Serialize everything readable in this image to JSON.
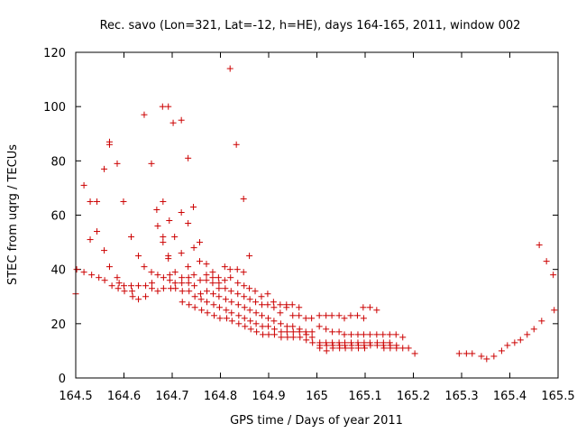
{
  "chart_data": {
    "type": "scatter",
    "title": "Rec. savo (Lon=321, Lat=-12, h=HE), days 164-165, 2011, window 002",
    "xlabel": "GPS time / Days of year 2011",
    "ylabel": "STEC from uqrg / TECUs",
    "xlim": [
      164.5,
      165.5
    ],
    "ylim": [
      0,
      120
    ],
    "xticks": [
      "164.5",
      "164.6",
      "164.7",
      "164.8",
      "164.9",
      "165",
      "165.1",
      "165.2",
      "165.3",
      "165.4",
      "165.5"
    ],
    "yticks": [
      "0",
      "20",
      "40",
      "60",
      "80",
      "100",
      "120"
    ],
    "grid": false,
    "marker": "+",
    "color": "#cc0000",
    "points": [
      [
        164.5,
        31
      ],
      [
        164.502,
        40
      ],
      [
        164.517,
        71
      ],
      [
        164.517,
        39
      ],
      [
        164.53,
        51
      ],
      [
        164.53,
        65
      ],
      [
        164.533,
        38
      ],
      [
        164.544,
        65
      ],
      [
        164.544,
        54
      ],
      [
        164.548,
        37
      ],
      [
        164.559,
        77
      ],
      [
        164.559,
        47
      ],
      [
        164.56,
        36
      ],
      [
        164.57,
        87
      ],
      [
        164.57,
        86
      ],
      [
        164.57,
        41
      ],
      [
        164.575,
        34
      ],
      [
        164.586,
        79
      ],
      [
        164.586,
        37
      ],
      [
        164.59,
        35
      ],
      [
        164.588,
        33
      ],
      [
        164.599,
        65
      ],
      [
        164.6,
        34
      ],
      [
        164.601,
        32
      ],
      [
        164.615,
        52
      ],
      [
        164.615,
        34
      ],
      [
        164.617,
        32
      ],
      [
        164.618,
        30
      ],
      [
        164.63,
        45
      ],
      [
        164.63,
        34
      ],
      [
        164.63,
        29
      ],
      [
        164.642,
        97
      ],
      [
        164.642,
        41
      ],
      [
        164.645,
        34
      ],
      [
        164.645,
        30
      ],
      [
        164.657,
        79
      ],
      [
        164.657,
        39
      ],
      [
        164.658,
        35
      ],
      [
        164.658,
        33
      ],
      [
        164.668,
        62
      ],
      [
        164.67,
        56
      ],
      [
        164.67,
        38
      ],
      [
        164.67,
        32
      ],
      [
        164.68,
        100
      ],
      [
        164.681,
        65
      ],
      [
        164.681,
        52
      ],
      [
        164.681,
        50
      ],
      [
        164.682,
        37
      ],
      [
        164.682,
        33
      ],
      [
        164.692,
        100
      ],
      [
        164.694,
        58
      ],
      [
        164.692,
        45
      ],
      [
        164.692,
        44
      ],
      [
        164.695,
        38
      ],
      [
        164.695,
        36
      ],
      [
        164.697,
        33
      ],
      [
        164.702,
        94
      ],
      [
        164.705,
        52
      ],
      [
        164.706,
        39
      ],
      [
        164.706,
        35
      ],
      [
        164.707,
        33
      ],
      [
        164.719,
        95
      ],
      [
        164.719,
        61
      ],
      [
        164.719,
        46
      ],
      [
        164.72,
        37
      ],
      [
        164.72,
        35
      ],
      [
        164.721,
        32
      ],
      [
        164.721,
        28
      ],
      [
        164.733,
        81
      ],
      [
        164.733,
        57
      ],
      [
        164.733,
        41
      ],
      [
        164.734,
        37
      ],
      [
        164.734,
        35
      ],
      [
        164.735,
        32
      ],
      [
        164.735,
        27
      ],
      [
        164.744,
        63
      ],
      [
        164.745,
        48
      ],
      [
        164.745,
        38
      ],
      [
        164.746,
        34
      ],
      [
        164.747,
        30
      ],
      [
        164.747,
        26
      ],
      [
        164.757,
        50
      ],
      [
        164.757,
        43
      ],
      [
        164.758,
        36
      ],
      [
        164.759,
        31
      ],
      [
        164.76,
        29
      ],
      [
        164.761,
        25
      ],
      [
        164.771,
        42
      ],
      [
        164.771,
        38
      ],
      [
        164.771,
        36
      ],
      [
        164.772,
        32
      ],
      [
        164.772,
        28
      ],
      [
        164.773,
        24
      ],
      [
        164.784,
        39
      ],
      [
        164.784,
        37
      ],
      [
        164.784,
        35
      ],
      [
        164.785,
        31
      ],
      [
        164.786,
        27
      ],
      [
        164.787,
        23
      ],
      [
        164.796,
        37
      ],
      [
        164.797,
        35
      ],
      [
        164.797,
        33
      ],
      [
        164.797,
        30
      ],
      [
        164.798,
        26
      ],
      [
        164.799,
        22
      ],
      [
        164.809,
        41
      ],
      [
        164.809,
        36
      ],
      [
        164.81,
        33
      ],
      [
        164.811,
        29
      ],
      [
        164.812,
        25
      ],
      [
        164.813,
        22
      ],
      [
        164.82,
        114
      ],
      [
        164.82,
        40
      ],
      [
        164.821,
        37
      ],
      [
        164.822,
        32
      ],
      [
        164.823,
        28
      ],
      [
        164.823,
        24
      ],
      [
        164.824,
        21
      ],
      [
        164.833,
        86
      ],
      [
        164.835,
        40
      ],
      [
        164.836,
        35
      ],
      [
        164.836,
        31
      ],
      [
        164.837,
        27
      ],
      [
        164.838,
        23
      ],
      [
        164.838,
        20
      ],
      [
        164.848,
        66
      ],
      [
        164.848,
        39
      ],
      [
        164.849,
        34
      ],
      [
        164.849,
        30
      ],
      [
        164.85,
        26
      ],
      [
        164.85,
        22
      ],
      [
        164.851,
        19
      ],
      [
        164.86,
        45
      ],
      [
        164.86,
        33
      ],
      [
        164.861,
        29
      ],
      [
        164.861,
        25
      ],
      [
        164.862,
        21
      ],
      [
        164.863,
        18
      ],
      [
        164.872,
        32
      ],
      [
        164.873,
        28
      ],
      [
        164.874,
        24
      ],
      [
        164.874,
        20
      ],
      [
        164.875,
        17
      ],
      [
        164.885,
        30
      ],
      [
        164.886,
        27
      ],
      [
        164.886,
        23
      ],
      [
        164.887,
        19
      ],
      [
        164.888,
        16
      ],
      [
        164.898,
        31
      ],
      [
        164.898,
        27
      ],
      [
        164.899,
        22
      ],
      [
        164.899,
        19
      ],
      [
        164.9,
        16
      ],
      [
        164.91,
        28
      ],
      [
        164.911,
        26
      ],
      [
        164.911,
        21
      ],
      [
        164.912,
        18
      ],
      [
        164.912,
        16
      ],
      [
        164.924,
        27
      ],
      [
        164.924,
        24
      ],
      [
        164.925,
        20
      ],
      [
        164.926,
        17
      ],
      [
        164.926,
        15
      ],
      [
        164.937,
        27
      ],
      [
        164.937,
        26
      ],
      [
        164.938,
        19
      ],
      [
        164.938,
        17
      ],
      [
        164.939,
        15
      ],
      [
        164.949,
        27
      ],
      [
        164.95,
        23
      ],
      [
        164.95,
        19
      ],
      [
        164.951,
        17
      ],
      [
        164.951,
        15
      ],
      [
        164.963,
        26
      ],
      [
        164.963,
        23
      ],
      [
        164.964,
        18
      ],
      [
        164.964,
        17
      ],
      [
        164.965,
        15
      ],
      [
        164.977,
        22
      ],
      [
        164.977,
        17
      ],
      [
        164.978,
        16
      ],
      [
        164.978,
        14
      ],
      [
        164.989,
        22
      ],
      [
        164.99,
        17
      ],
      [
        164.99,
        15
      ],
      [
        164.991,
        13
      ],
      [
        165.005,
        23
      ],
      [
        165.005,
        19
      ],
      [
        165.006,
        13
      ],
      [
        165.006,
        12
      ],
      [
        165.006,
        11
      ],
      [
        165.019,
        23
      ],
      [
        165.019,
        18
      ],
      [
        165.019,
        13
      ],
      [
        165.02,
        12
      ],
      [
        165.02,
        10
      ],
      [
        165.031,
        23
      ],
      [
        165.032,
        17
      ],
      [
        165.032,
        13
      ],
      [
        165.033,
        12
      ],
      [
        165.033,
        11
      ],
      [
        165.046,
        23
      ],
      [
        165.046,
        17
      ],
      [
        165.046,
        13
      ],
      [
        165.047,
        12
      ],
      [
        165.047,
        11
      ],
      [
        165.057,
        22
      ],
      [
        165.057,
        16
      ],
      [
        165.058,
        13
      ],
      [
        165.058,
        12
      ],
      [
        165.059,
        11
      ],
      [
        165.07,
        23
      ],
      [
        165.071,
        16
      ],
      [
        165.071,
        13
      ],
      [
        165.072,
        12
      ],
      [
        165.072,
        11
      ],
      [
        165.084,
        23
      ],
      [
        165.085,
        16
      ],
      [
        165.085,
        13
      ],
      [
        165.086,
        12
      ],
      [
        165.086,
        11
      ],
      [
        165.096,
        26
      ],
      [
        165.097,
        22
      ],
      [
        165.097,
        16
      ],
      [
        165.098,
        13
      ],
      [
        165.098,
        12
      ],
      [
        165.099,
        11
      ],
      [
        165.11,
        26
      ],
      [
        165.11,
        16
      ],
      [
        165.11,
        13
      ],
      [
        165.111,
        12
      ],
      [
        165.124,
        25
      ],
      [
        165.124,
        16
      ],
      [
        165.125,
        13
      ],
      [
        165.125,
        12
      ],
      [
        165.137,
        16
      ],
      [
        165.138,
        13
      ],
      [
        165.138,
        12
      ],
      [
        165.139,
        11
      ],
      [
        165.151,
        16
      ],
      [
        165.151,
        13
      ],
      [
        165.152,
        12
      ],
      [
        165.152,
        11
      ],
      [
        165.164,
        16
      ],
      [
        165.165,
        12
      ],
      [
        165.165,
        11
      ],
      [
        165.178,
        15
      ],
      [
        165.178,
        11
      ],
      [
        165.19,
        11
      ],
      [
        165.203,
        9
      ],
      [
        165.295,
        9
      ],
      [
        165.31,
        9
      ],
      [
        165.322,
        9
      ],
      [
        165.341,
        8
      ],
      [
        165.352,
        7
      ],
      [
        165.367,
        8
      ],
      [
        165.383,
        10
      ],
      [
        165.395,
        12
      ],
      [
        165.41,
        13
      ],
      [
        165.422,
        14
      ],
      [
        165.436,
        16
      ],
      [
        165.45,
        18
      ],
      [
        165.461,
        49
      ],
      [
        165.466,
        21
      ],
      [
        165.476,
        43
      ],
      [
        165.49,
        38
      ],
      [
        165.492,
        25
      ]
    ]
  }
}
